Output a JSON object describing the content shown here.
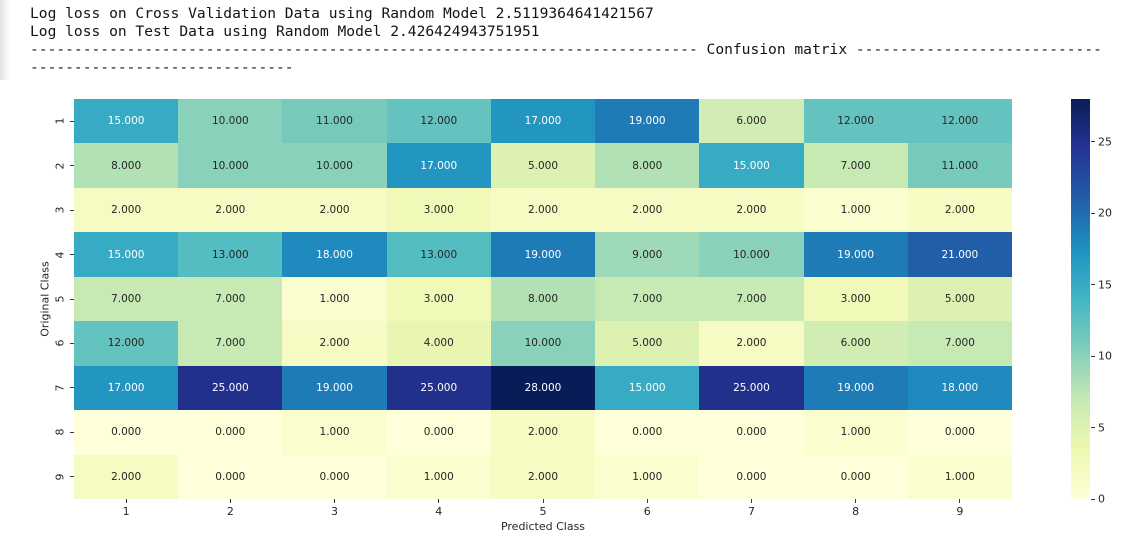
{
  "console": {
    "line1": "Log loss on Cross Validation Data using Random Model 2.5119364641421567",
    "line2": "Log loss on Test Data using Random Model 2.426424943751951",
    "separator_line1": "---------------------------------------------------------------------------- Confusion matrix ----------------------------",
    "separator_line2": "------------------------------"
  },
  "chart_data": {
    "type": "heatmap",
    "title": "Confusion matrix",
    "xlabel": "Predicted Class",
    "ylabel": "Original Class",
    "x_ticklabels": [
      "1",
      "2",
      "3",
      "4",
      "5",
      "6",
      "7",
      "8",
      "9"
    ],
    "y_ticklabels": [
      "1",
      "2",
      "3",
      "4",
      "5",
      "6",
      "7",
      "8",
      "9"
    ],
    "matrix": [
      [
        15,
        10,
        11,
        12,
        17,
        19,
        6,
        12,
        12
      ],
      [
        8,
        10,
        10,
        17,
        5,
        8,
        15,
        7,
        11
      ],
      [
        2,
        2,
        2,
        3,
        2,
        2,
        2,
        1,
        2
      ],
      [
        15,
        13,
        18,
        13,
        19,
        9,
        10,
        19,
        21
      ],
      [
        7,
        7,
        1,
        3,
        8,
        7,
        7,
        3,
        5
      ],
      [
        12,
        7,
        2,
        4,
        10,
        5,
        2,
        6,
        7
      ],
      [
        17,
        25,
        19,
        25,
        28,
        15,
        25,
        19,
        18
      ],
      [
        0,
        0,
        1,
        0,
        2,
        0,
        0,
        1,
        0
      ],
      [
        2,
        0,
        0,
        1,
        2,
        1,
        0,
        0,
        1
      ]
    ],
    "value_decimals": 3,
    "vmin": 0,
    "vmax": 28,
    "colormap": "YlGnBu",
    "colormap_stops": [
      "#ffffd9",
      "#edf8b1",
      "#c7e9b4",
      "#7fcdbb",
      "#41b6c4",
      "#1d91c0",
      "#225ea8",
      "#253494",
      "#081d58"
    ],
    "colorbar_ticks": [
      0,
      5,
      10,
      15,
      20,
      25
    ],
    "annot_color_dark": "#262626",
    "annot_color_light": "#ffffff",
    "legend_position": "right",
    "grid": false
  }
}
